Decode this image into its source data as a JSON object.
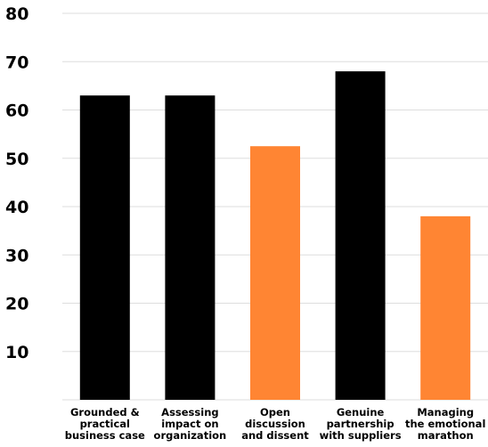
{
  "chart_data": {
    "type": "bar",
    "categories": [
      [
        "Grounded &",
        "practical",
        "business case"
      ],
      [
        "Assessing",
        "impact on",
        "organization"
      ],
      [
        "Open",
        "discussion",
        "and dissent"
      ],
      [
        "Genuine",
        "partnership",
        "with suppliers"
      ],
      [
        "Managing",
        "the emotional",
        "marathon"
      ]
    ],
    "values": [
      63,
      63,
      52.5,
      68,
      38
    ],
    "bar_colors": [
      "#000000",
      "#000000",
      "#ff8533",
      "#000000",
      "#ff8533"
    ],
    "ylim": [
      0,
      80
    ],
    "yticks": [
      10,
      20,
      30,
      40,
      50,
      60,
      70,
      80
    ],
    "grid": true,
    "legend": "none"
  }
}
